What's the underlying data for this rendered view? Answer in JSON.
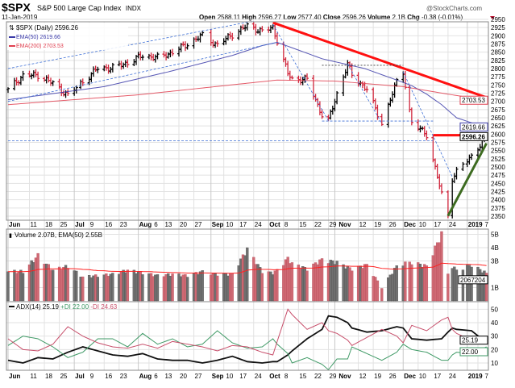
{
  "header": {
    "symbol": "$SPX",
    "name": "S&P 500 Large Cap Index",
    "exchange": "INDX",
    "date": "11-Jan-2019",
    "brand": "@StockCharts.com",
    "open_label": "Open",
    "open": "2588.11",
    "high_label": "High",
    "high": "2596.27",
    "low_label": "Low",
    "low": "2577.40",
    "close_label": "Close",
    "close": "2596.26",
    "volume_label": "Volume",
    "volume": "2.1B",
    "chg_label": "Chg",
    "chg": "-0.38 (-0.01%)"
  },
  "colors": {
    "up": "#000000",
    "down": "#d0263c",
    "ema50": "#3a3aa8",
    "ema200": "#e04050",
    "trend_red": "#ff1010",
    "trend_green": "#3d6b20",
    "dash": "#3d6fd6",
    "vol_up": "#707070",
    "vol_down": "#cf6a74",
    "adx": "#111111",
    "plus_di": "#3f9a66",
    "minus_di": "#c8506c",
    "grid": "#e2e2e2"
  },
  "chart_data": [
    {
      "type": "ohlc",
      "legend": [
        "$SPX (Daily) 2596.26",
        "EMA(50) 2619.66",
        "EMA(200) 2703.53"
      ],
      "ylim": [
        2350,
        2950
      ],
      "yticks": [
        2350,
        2375,
        2400,
        2425,
        2450,
        2475,
        2500,
        2525,
        2550,
        2575,
        2600,
        2625,
        2650,
        2675,
        2700,
        2725,
        2750,
        2775,
        2800,
        2825,
        2850,
        2875,
        2900,
        2925,
        2950
      ],
      "value_tags": [
        {
          "label": "2703.53",
          "value": 2703.53,
          "series": "ema200"
        },
        {
          "label": "2619.66",
          "value": 2619.66,
          "series": "ema50"
        },
        {
          "label": "2596.26",
          "value": 2596.26,
          "series": "close"
        }
      ],
      "close_points": [
        [
          "2018-06-01",
          2735
        ],
        [
          "2018-06-08",
          2779
        ],
        [
          "2018-06-15",
          2780
        ],
        [
          "2018-06-22",
          2755
        ],
        [
          "2018-06-29",
          2718
        ],
        [
          "2018-07-06",
          2760
        ],
        [
          "2018-07-13",
          2801
        ],
        [
          "2018-07-20",
          2802
        ],
        [
          "2018-07-27",
          2818
        ],
        [
          "2018-08-03",
          2840
        ],
        [
          "2018-08-10",
          2833
        ],
        [
          "2018-08-17",
          2850
        ],
        [
          "2018-08-24",
          2875
        ],
        [
          "2018-08-31",
          2901
        ],
        [
          "2018-09-07",
          2872
        ],
        [
          "2018-09-14",
          2904
        ],
        [
          "2018-09-21",
          2930
        ],
        [
          "2018-09-28",
          2913
        ],
        [
          "2018-10-03",
          2925
        ],
        [
          "2018-10-05",
          2885
        ],
        [
          "2018-10-10",
          2785
        ],
        [
          "2018-10-12",
          2767
        ],
        [
          "2018-10-19",
          2767
        ],
        [
          "2018-10-26",
          2658
        ],
        [
          "2018-10-29",
          2641
        ],
        [
          "2018-11-02",
          2723
        ],
        [
          "2018-11-07",
          2813
        ],
        [
          "2018-11-09",
          2781
        ],
        [
          "2018-11-16",
          2736
        ],
        [
          "2018-11-23",
          2633
        ],
        [
          "2018-11-30",
          2760
        ],
        [
          "2018-12-03",
          2790
        ],
        [
          "2018-12-07",
          2633
        ],
        [
          "2018-12-14",
          2600
        ],
        [
          "2018-12-21",
          2417
        ],
        [
          "2018-12-24",
          2351
        ],
        [
          "2018-12-26",
          2467
        ],
        [
          "2018-12-28",
          2486
        ],
        [
          "2019-01-04",
          2532
        ],
        [
          "2019-01-11",
          2596.26
        ]
      ],
      "ema50_points": [
        [
          "2018-06-01",
          2705
        ],
        [
          "2018-07-16",
          2745
        ],
        [
          "2018-08-15",
          2790
        ],
        [
          "2018-09-14",
          2840
        ],
        [
          "2018-09-28",
          2870
        ],
        [
          "2018-10-05",
          2880
        ],
        [
          "2018-10-26",
          2830
        ],
        [
          "2018-11-15",
          2800
        ],
        [
          "2018-11-30",
          2765
        ],
        [
          "2018-12-07",
          2748
        ],
        [
          "2018-12-14",
          2722
        ],
        [
          "2018-12-21",
          2690
        ],
        [
          "2018-12-28",
          2650
        ],
        [
          "2019-01-11",
          2619.66
        ]
      ],
      "ema200_points": [
        [
          "2018-06-01",
          2690
        ],
        [
          "2018-08-01",
          2720
        ],
        [
          "2018-10-05",
          2765
        ],
        [
          "2018-11-01",
          2762
        ],
        [
          "2018-12-03",
          2745
        ],
        [
          "2018-12-24",
          2722
        ],
        [
          "2019-01-11",
          2703.53
        ]
      ],
      "annotations": [
        {
          "from": [
            "2018-10-03",
            2940
          ],
          "to": [
            "2019-01-11",
            2712
          ],
          "style": "trend_red"
        },
        {
          "from": [
            "2018-12-17",
            2597
          ],
          "to": [
            "2019-01-11",
            2597
          ],
          "style": "trend_red"
        },
        {
          "from": [
            "2018-12-24",
            2351
          ],
          "to": [
            "2019-01-11",
            2572
          ],
          "style": "trend_green"
        },
        {
          "from": [
            "2018-06-01",
            2800
          ],
          "to": [
            "2018-09-24",
            2945
          ],
          "style": "dash"
        },
        {
          "from": [
            "2018-06-01",
            2700
          ],
          "to": [
            "2018-10-05",
            2880
          ],
          "style": "dash"
        },
        {
          "from": [
            "2018-06-01",
            2580
          ],
          "to": [
            "2018-12-17",
            2580
          ],
          "style": "dash"
        },
        {
          "from": [
            "2018-10-26",
            2640
          ],
          "to": [
            "2018-12-17",
            2640
          ],
          "style": "dash"
        },
        {
          "from": [
            "2018-10-26",
            2810
          ],
          "to": [
            "2018-12-03",
            2810
          ],
          "style": "dash_dark"
        },
        {
          "from": [
            "2018-10-03",
            2935
          ],
          "to": [
            "2018-10-29",
            2641
          ],
          "style": "dash"
        },
        {
          "from": [
            "2018-11-07",
            2813
          ],
          "to": [
            "2018-11-23",
            2633
          ],
          "style": "dash"
        },
        {
          "from": [
            "2018-12-03",
            2790
          ],
          "to": [
            "2018-12-26",
            2470
          ],
          "style": "dash"
        }
      ]
    },
    {
      "type": "bar",
      "legend": "Volume 2.07B, EMA(50) 2.55B",
      "ylim": [
        0,
        5.2
      ],
      "yticks": [
        {
          "v": 1,
          "label": "1B"
        },
        {
          "v": 3,
          "label": "3B"
        },
        {
          "v": 4,
          "label": "4B"
        },
        {
          "v": 5,
          "label": "5B"
        }
      ],
      "value_tag": "2067204",
      "unit": "B",
      "volume_points": [
        [
          "2018-06-01",
          2.2
        ],
        [
          "2018-06-08",
          2.2
        ],
        [
          "2018-06-15",
          3.4
        ],
        [
          "2018-06-22",
          2.3
        ],
        [
          "2018-06-29",
          2.6
        ],
        [
          "2018-07-06",
          1.8
        ],
        [
          "2018-07-13",
          1.9
        ],
        [
          "2018-07-20",
          2.0
        ],
        [
          "2018-07-27",
          2.3
        ],
        [
          "2018-08-03",
          2.1
        ],
        [
          "2018-08-10",
          1.9
        ],
        [
          "2018-08-17",
          2.0
        ],
        [
          "2018-08-24",
          1.9
        ],
        [
          "2018-08-31",
          2.2
        ],
        [
          "2018-09-07",
          2.0
        ],
        [
          "2018-09-14",
          2.0
        ],
        [
          "2018-09-21",
          3.9
        ],
        [
          "2018-09-28",
          2.2
        ],
        [
          "2018-10-03",
          2.1
        ],
        [
          "2018-10-05",
          2.3
        ],
        [
          "2018-10-10",
          3.2
        ],
        [
          "2018-10-12",
          2.8
        ],
        [
          "2018-10-19",
          2.4
        ],
        [
          "2018-10-26",
          3.1
        ],
        [
          "2018-10-29",
          3.0
        ],
        [
          "2018-11-02",
          2.9
        ],
        [
          "2018-11-07",
          2.5
        ],
        [
          "2018-11-09",
          2.4
        ],
        [
          "2018-11-16",
          2.7
        ],
        [
          "2018-11-23",
          1.0
        ],
        [
          "2018-11-30",
          2.6
        ],
        [
          "2018-12-03",
          2.8
        ],
        [
          "2018-12-07",
          2.9
        ],
        [
          "2018-12-14",
          2.6
        ],
        [
          "2018-12-21",
          5.0
        ],
        [
          "2018-12-24",
          2.0
        ],
        [
          "2018-12-26",
          2.6
        ],
        [
          "2018-12-28",
          2.3
        ],
        [
          "2019-01-04",
          2.7
        ],
        [
          "2019-01-11",
          2.07
        ]
      ]
    },
    {
      "type": "line",
      "legend": [
        {
          "label": "ADX(14) 25.19",
          "series": "adx"
        },
        {
          "label": "+DI 22.00",
          "series": "plus_di"
        },
        {
          "label": "-DI 24.63",
          "series": "minus_di"
        }
      ],
      "ylim": [
        0,
        56
      ],
      "yticks": [
        10,
        20,
        30,
        40,
        50
      ],
      "value_tags": [
        {
          "label": "25.19",
          "value": 25.19
        },
        {
          "label": "22.00",
          "value": 22.0
        }
      ],
      "dates": [
        "2018-06-01",
        "2018-06-08",
        "2018-06-15",
        "2018-06-22",
        "2018-06-29",
        "2018-07-06",
        "2018-07-13",
        "2018-07-20",
        "2018-07-27",
        "2018-08-03",
        "2018-08-10",
        "2018-08-17",
        "2018-08-24",
        "2018-08-31",
        "2018-09-07",
        "2018-09-14",
        "2018-09-21",
        "2018-09-28",
        "2018-10-03",
        "2018-10-05",
        "2018-10-10",
        "2018-10-12",
        "2018-10-19",
        "2018-10-26",
        "2018-10-29",
        "2018-11-02",
        "2018-11-07",
        "2018-11-09",
        "2018-11-16",
        "2018-11-23",
        "2018-11-30",
        "2018-12-03",
        "2018-12-07",
        "2018-12-14",
        "2018-12-21",
        "2018-12-24",
        "2018-12-26",
        "2018-12-28",
        "2019-01-04",
        "2019-01-11"
      ],
      "series": [
        {
          "name": "ADX(14)",
          "key": "adx",
          "values": [
            12,
            10,
            14,
            13,
            18,
            22,
            19,
            16,
            15,
            17,
            13,
            12,
            12,
            10,
            12,
            15,
            11,
            10,
            11,
            11,
            16,
            19,
            28,
            35,
            45,
            44,
            40,
            36,
            33,
            34,
            37,
            36,
            28,
            27,
            28,
            33,
            36,
            35,
            34,
            25.19
          ]
        },
        {
          "name": "+DI",
          "key": "plus_di",
          "values": [
            23,
            30,
            28,
            22,
            14,
            18,
            28,
            28,
            22,
            32,
            24,
            28,
            22,
            24,
            34,
            25,
            21,
            22,
            28,
            24,
            17,
            10,
            14,
            9,
            5,
            13,
            13,
            22,
            17,
            12,
            18,
            24,
            20,
            18,
            12,
            12,
            16,
            18,
            17,
            22.0
          ]
        },
        {
          "name": "-DI",
          "key": "minus_di",
          "values": [
            28,
            20,
            19,
            24,
            37,
            30,
            25,
            22,
            21,
            24,
            21,
            26,
            24,
            22,
            19,
            23,
            22,
            18,
            16,
            26,
            50,
            46,
            35,
            40,
            34,
            32,
            27,
            23,
            29,
            35,
            30,
            25,
            38,
            34,
            42,
            44,
            35,
            32,
            27,
            24.63
          ]
        }
      ]
    }
  ],
  "x_axis": {
    "ticks": [
      {
        "label": "Jun",
        "date": "2018-06-01",
        "bold": true
      },
      {
        "label": "11",
        "date": "2018-06-11"
      },
      {
        "label": "18",
        "date": "2018-06-18"
      },
      {
        "label": "25",
        "date": "2018-06-25"
      },
      {
        "label": "Jul",
        "date": "2018-07-02",
        "bold": true
      },
      {
        "label": "9",
        "date": "2018-07-09"
      },
      {
        "label": "16",
        "date": "2018-07-16"
      },
      {
        "label": "23",
        "date": "2018-07-23"
      },
      {
        "label": "Aug",
        "date": "2018-08-01",
        "bold": true
      },
      {
        "label": "6",
        "date": "2018-08-06"
      },
      {
        "label": "13",
        "date": "2018-08-13"
      },
      {
        "label": "20",
        "date": "2018-08-20"
      },
      {
        "label": "27",
        "date": "2018-08-27"
      },
      {
        "label": "Sep",
        "date": "2018-09-04",
        "bold": true
      },
      {
        "label": "10",
        "date": "2018-09-10"
      },
      {
        "label": "17",
        "date": "2018-09-17"
      },
      {
        "label": "24",
        "date": "2018-09-24"
      },
      {
        "label": "Oct",
        "date": "2018-10-01",
        "bold": true
      },
      {
        "label": "8",
        "date": "2018-10-08"
      },
      {
        "label": "15",
        "date": "2018-10-15"
      },
      {
        "label": "22",
        "date": "2018-10-22"
      },
      {
        "label": "29",
        "date": "2018-10-29"
      },
      {
        "label": "Nov",
        "date": "2018-11-01",
        "bold": true
      },
      {
        "label": "12",
        "date": "2018-11-12"
      },
      {
        "label": "19",
        "date": "2018-11-19"
      },
      {
        "label": "26",
        "date": "2018-11-26"
      },
      {
        "label": "Dec",
        "date": "2018-12-03",
        "bold": true
      },
      {
        "label": "10",
        "date": "2018-12-10"
      },
      {
        "label": "17",
        "date": "2018-12-17"
      },
      {
        "label": "24",
        "date": "2018-12-24"
      },
      {
        "label": "2019",
        "date": "2019-01-02",
        "bold": true
      },
      {
        "label": "7",
        "date": "2019-01-07"
      }
    ],
    "holidays": [
      "2018-07-04",
      "2018-09-03",
      "2018-11-22",
      "2018-12-05",
      "2018-12-25",
      "2019-01-01"
    ]
  }
}
